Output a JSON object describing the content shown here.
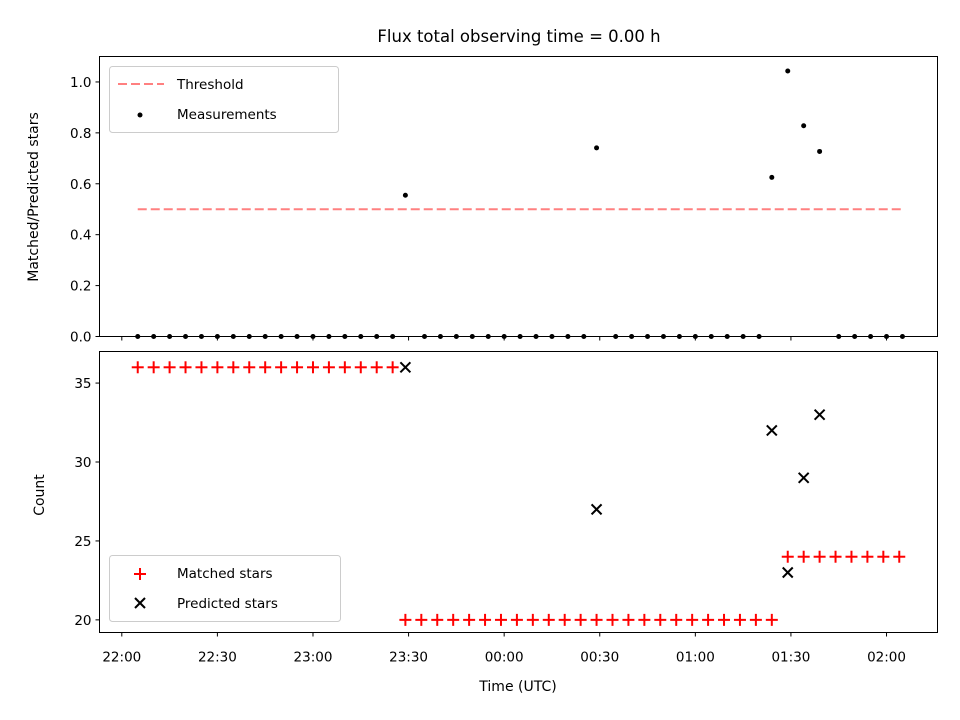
{
  "chart_data": [
    {
      "type": "scatter",
      "title": "Flux total observing time = 0.00 h",
      "xlabel": "",
      "ylabel": "Matched/Predicted stars",
      "ylim": [
        0,
        1.1
      ],
      "yticks": [
        "0.0",
        "0.2",
        "0.4",
        "0.6",
        "0.8",
        "1.0"
      ],
      "legend": {
        "placement": "top-left",
        "entries": [
          "Threshold",
          "Measurements"
        ]
      },
      "threshold": {
        "name": "Threshold",
        "value": 0.5,
        "x_start": "22:05",
        "x_end": "02:05",
        "color": "#ff8080",
        "style": "dashed"
      },
      "series": [
        {
          "name": "Measurements",
          "color": "#000000",
          "marker": "dot",
          "points": [
            [
              "22:05",
              0
            ],
            [
              "22:10",
              0
            ],
            [
              "22:15",
              0
            ],
            [
              "22:20",
              0
            ],
            [
              "22:25",
              0
            ],
            [
              "22:30",
              0
            ],
            [
              "22:35",
              0
            ],
            [
              "22:40",
              0
            ],
            [
              "22:45",
              0
            ],
            [
              "22:50",
              0
            ],
            [
              "22:55",
              0
            ],
            [
              "23:00",
              0
            ],
            [
              "23:05",
              0
            ],
            [
              "23:10",
              0
            ],
            [
              "23:15",
              0
            ],
            [
              "23:20",
              0
            ],
            [
              "23:25",
              0
            ],
            [
              "23:29",
              0.555
            ],
            [
              "23:35",
              0
            ],
            [
              "23:40",
              0
            ],
            [
              "23:45",
              0
            ],
            [
              "23:50",
              0
            ],
            [
              "23:55",
              0
            ],
            [
              "00:00",
              0
            ],
            [
              "00:05",
              0
            ],
            [
              "00:10",
              0
            ],
            [
              "00:15",
              0
            ],
            [
              "00:20",
              0
            ],
            [
              "00:25",
              0
            ],
            [
              "00:29",
              0.741
            ],
            [
              "00:35",
              0
            ],
            [
              "00:40",
              0
            ],
            [
              "00:45",
              0
            ],
            [
              "00:50",
              0
            ],
            [
              "00:55",
              0
            ],
            [
              "01:00",
              0
            ],
            [
              "01:05",
              0
            ],
            [
              "01:10",
              0
            ],
            [
              "01:15",
              0
            ],
            [
              "01:20",
              0
            ],
            [
              "01:24",
              0.625
            ],
            [
              "01:29",
              1.043
            ],
            [
              "01:34",
              0.828
            ],
            [
              "01:39",
              0.727
            ],
            [
              "01:45",
              0
            ],
            [
              "01:50",
              0
            ],
            [
              "01:55",
              0
            ],
            [
              "02:00",
              0
            ],
            [
              "02:05",
              0
            ]
          ]
        }
      ]
    },
    {
      "type": "scatter",
      "title": "",
      "xlabel": "Time (UTC)",
      "ylabel": "Count",
      "ylim": [
        19.2,
        37
      ],
      "yticks": [
        "20",
        "25",
        "30",
        "35"
      ],
      "xlim": [
        "21:53",
        "02:16"
      ],
      "xticks": [
        "22:00",
        "22:30",
        "23:00",
        "23:30",
        "00:00",
        "00:30",
        "01:00",
        "01:30",
        "02:00"
      ],
      "legend": {
        "placement": "bottom-left",
        "entries": [
          "Matched stars",
          "Predicted stars"
        ]
      },
      "series": [
        {
          "name": "Matched stars",
          "color": "#ff0000",
          "marker": "plus",
          "points": [
            [
              "22:05",
              36
            ],
            [
              "22:10",
              36
            ],
            [
              "22:15",
              36
            ],
            [
              "22:20",
              36
            ],
            [
              "22:25",
              36
            ],
            [
              "22:30",
              36
            ],
            [
              "22:35",
              36
            ],
            [
              "22:40",
              36
            ],
            [
              "22:45",
              36
            ],
            [
              "22:50",
              36
            ],
            [
              "22:55",
              36
            ],
            [
              "23:00",
              36
            ],
            [
              "23:05",
              36
            ],
            [
              "23:10",
              36
            ],
            [
              "23:15",
              36
            ],
            [
              "23:20",
              36
            ],
            [
              "23:25",
              36
            ],
            [
              "23:29",
              20
            ],
            [
              "23:34",
              20
            ],
            [
              "23:39",
              20
            ],
            [
              "23:44",
              20
            ],
            [
              "23:49",
              20
            ],
            [
              "23:54",
              20
            ],
            [
              "23:59",
              20
            ],
            [
              "00:04",
              20
            ],
            [
              "00:09",
              20
            ],
            [
              "00:14",
              20
            ],
            [
              "00:19",
              20
            ],
            [
              "00:24",
              20
            ],
            [
              "00:29",
              20
            ],
            [
              "00:34",
              20
            ],
            [
              "00:39",
              20
            ],
            [
              "00:44",
              20
            ],
            [
              "00:49",
              20
            ],
            [
              "00:54",
              20
            ],
            [
              "00:59",
              20
            ],
            [
              "01:04",
              20
            ],
            [
              "01:09",
              20
            ],
            [
              "01:14",
              20
            ],
            [
              "01:19",
              20
            ],
            [
              "01:24",
              20
            ],
            [
              "01:29",
              24
            ],
            [
              "01:34",
              24
            ],
            [
              "01:39",
              24
            ],
            [
              "01:44",
              24
            ],
            [
              "01:49",
              24
            ],
            [
              "01:54",
              24
            ],
            [
              "01:59",
              24
            ],
            [
              "02:04",
              24
            ]
          ]
        },
        {
          "name": "Predicted stars",
          "color": "#000000",
          "marker": "x",
          "points": [
            [
              "23:29",
              36
            ],
            [
              "00:29",
              27
            ],
            [
              "01:24",
              32
            ],
            [
              "01:29",
              23
            ],
            [
              "01:34",
              29
            ],
            [
              "01:39",
              33
            ]
          ]
        }
      ]
    }
  ]
}
